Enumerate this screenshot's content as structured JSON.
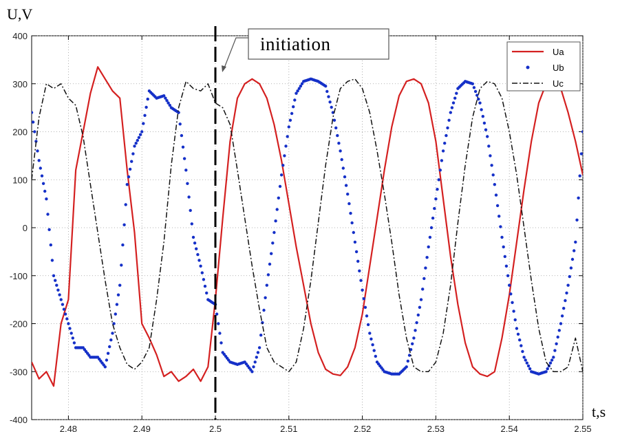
{
  "chart_data": {
    "type": "line",
    "xlabel": "t,s",
    "ylabel": "U,V",
    "xlim": [
      2.475,
      2.55
    ],
    "ylim": [
      -400,
      400
    ],
    "xticks": [
      2.48,
      2.49,
      2.5,
      2.51,
      2.52,
      2.53,
      2.54,
      2.55
    ],
    "xtick_labels": [
      "2.48",
      "2.49",
      "2.5",
      "2.51",
      "2.52",
      "2.53",
      "2.54",
      "2.55"
    ],
    "yticks": [
      -400,
      -300,
      -200,
      -100,
      0,
      100,
      200,
      300,
      400
    ],
    "ytick_labels": [
      "-400",
      "-300",
      "-200",
      "-100",
      "0",
      "100",
      "200",
      "300",
      "400"
    ],
    "grid": true,
    "legend_position": "top-right",
    "annotation": {
      "text": "initiation",
      "x": 2.5
    },
    "series": [
      {
        "name": "Ua",
        "color": "#d42020",
        "style": "solid",
        "x": [
          2.475,
          2.476,
          2.477,
          2.478,
          2.479,
          2.48,
          2.481,
          2.482,
          2.483,
          2.484,
          2.485,
          2.486,
          2.487,
          2.488,
          2.489,
          2.49,
          2.491,
          2.492,
          2.493,
          2.494,
          2.495,
          2.496,
          2.497,
          2.498,
          2.499,
          2.5,
          2.501,
          2.502,
          2.503,
          2.504,
          2.505,
          2.506,
          2.507,
          2.508,
          2.509,
          2.51,
          2.511,
          2.512,
          2.513,
          2.514,
          2.515,
          2.516,
          2.517,
          2.518,
          2.519,
          2.52,
          2.521,
          2.522,
          2.523,
          2.524,
          2.525,
          2.526,
          2.527,
          2.528,
          2.529,
          2.53,
          2.531,
          2.532,
          2.533,
          2.534,
          2.535,
          2.536,
          2.537,
          2.538,
          2.539,
          2.54,
          2.541,
          2.542,
          2.543,
          2.544,
          2.545,
          2.546,
          2.547,
          2.548,
          2.549,
          2.55
        ],
        "y": [
          -280,
          -315,
          -300,
          -330,
          -200,
          -150,
          120,
          200,
          280,
          335,
          310,
          285,
          270,
          120,
          -10,
          -200,
          -230,
          -265,
          -310,
          -300,
          -320,
          -310,
          -295,
          -320,
          -290,
          -150,
          20,
          180,
          270,
          300,
          310,
          300,
          270,
          215,
          140,
          50,
          -40,
          -120,
          -200,
          -260,
          -295,
          -305,
          -308,
          -290,
          -250,
          -180,
          -80,
          20,
          120,
          210,
          275,
          305,
          310,
          300,
          260,
          180,
          60,
          -60,
          -160,
          -240,
          -290,
          -305,
          -310,
          -300,
          -230,
          -140,
          -30,
          80,
          180,
          260,
          300,
          310,
          290,
          240,
          180,
          110
        ]
      },
      {
        "name": "Ub",
        "color": "#1530c8",
        "style": "dotted",
        "x": [
          2.475,
          2.476,
          2.477,
          2.478,
          2.479,
          2.48,
          2.481,
          2.482,
          2.483,
          2.484,
          2.485,
          2.486,
          2.487,
          2.488,
          2.489,
          2.49,
          2.491,
          2.492,
          2.493,
          2.494,
          2.495,
          2.496,
          2.497,
          2.498,
          2.499,
          2.5,
          2.501,
          2.502,
          2.503,
          2.504,
          2.505,
          2.506,
          2.507,
          2.508,
          2.509,
          2.51,
          2.511,
          2.512,
          2.513,
          2.514,
          2.515,
          2.516,
          2.517,
          2.518,
          2.519,
          2.52,
          2.521,
          2.522,
          2.523,
          2.524,
          2.525,
          2.526,
          2.527,
          2.528,
          2.529,
          2.53,
          2.531,
          2.532,
          2.533,
          2.534,
          2.535,
          2.536,
          2.537,
          2.538,
          2.539,
          2.54,
          2.541,
          2.542,
          2.543,
          2.544,
          2.545,
          2.546,
          2.547,
          2.548,
          2.549,
          2.55
        ],
        "y": [
          240,
          140,
          60,
          -100,
          -150,
          -200,
          -250,
          -250,
          -270,
          -270,
          -290,
          -220,
          -120,
          90,
          170,
          200,
          285,
          270,
          275,
          250,
          240,
          120,
          -20,
          -80,
          -150,
          -160,
          -260,
          -280,
          -285,
          -280,
          -300,
          -250,
          -120,
          -10,
          110,
          210,
          280,
          305,
          310,
          305,
          295,
          240,
          160,
          70,
          -30,
          -130,
          -220,
          -280,
          -300,
          -305,
          -305,
          -290,
          -230,
          -150,
          -40,
          60,
          160,
          240,
          290,
          305,
          300,
          260,
          190,
          90,
          -20,
          -120,
          -210,
          -270,
          -300,
          -305,
          -300,
          -270,
          -200,
          -120,
          -30,
          200
        ]
      },
      {
        "name": "Uc",
        "color": "#111111",
        "style": "dashdot",
        "x": [
          2.475,
          2.476,
          2.477,
          2.478,
          2.479,
          2.48,
          2.481,
          2.482,
          2.483,
          2.484,
          2.485,
          2.486,
          2.487,
          2.488,
          2.489,
          2.49,
          2.491,
          2.492,
          2.493,
          2.494,
          2.495,
          2.496,
          2.497,
          2.498,
          2.499,
          2.5,
          2.501,
          2.502,
          2.503,
          2.504,
          2.505,
          2.506,
          2.507,
          2.508,
          2.509,
          2.51,
          2.511,
          2.512,
          2.513,
          2.514,
          2.515,
          2.516,
          2.517,
          2.518,
          2.519,
          2.52,
          2.521,
          2.522,
          2.523,
          2.524,
          2.525,
          2.526,
          2.527,
          2.528,
          2.529,
          2.53,
          2.531,
          2.532,
          2.533,
          2.534,
          2.535,
          2.536,
          2.537,
          2.538,
          2.539,
          2.54,
          2.541,
          2.542,
          2.543,
          2.544,
          2.545,
          2.546,
          2.547,
          2.548,
          2.549,
          2.55
        ],
        "y": [
          100,
          230,
          300,
          290,
          300,
          270,
          255,
          190,
          90,
          -10,
          -110,
          -200,
          -250,
          -285,
          -295,
          -280,
          -250,
          -150,
          -30,
          130,
          250,
          305,
          290,
          285,
          300,
          260,
          250,
          215,
          120,
          20,
          -80,
          -170,
          -250,
          -280,
          -290,
          -300,
          -280,
          -210,
          -110,
          10,
          130,
          230,
          290,
          305,
          310,
          290,
          240,
          160,
          70,
          -30,
          -140,
          -230,
          -290,
          -300,
          -300,
          -280,
          -220,
          -120,
          10,
          130,
          230,
          290,
          305,
          300,
          270,
          200,
          110,
          0,
          -110,
          -210,
          -280,
          -300,
          -300,
          -290,
          -230,
          -300
        ]
      }
    ]
  }
}
